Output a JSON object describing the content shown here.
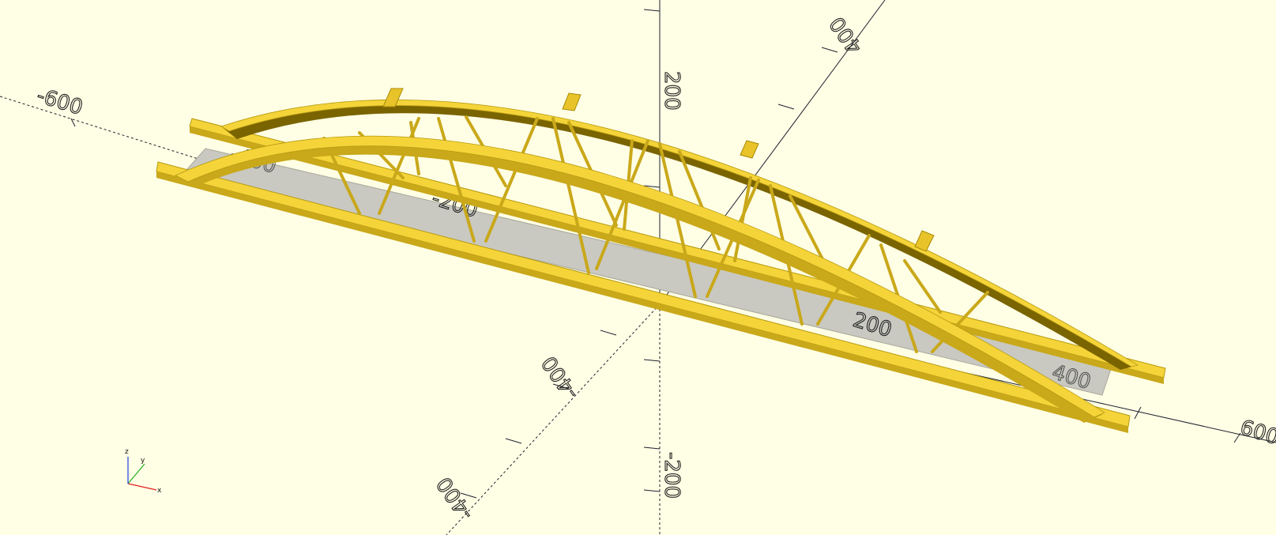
{
  "app": "OpenSCAD",
  "colors": {
    "background": "#ffffe5",
    "model": "#f5d43a",
    "model_dark": "#b59a10",
    "model_shadow": "#7a6400",
    "deck": "#c8c8c0",
    "axis": "#1e2130",
    "gizmo_x": "#e02020",
    "gizmo_y": "#20b020",
    "gizmo_z": "#2040e0"
  },
  "axes": {
    "x_positive": "600",
    "x_negative": "-600",
    "y_positive": "400",
    "y_negative": "-400",
    "z_positive": "200",
    "z_negative": "-200",
    "deck_left": "-200",
    "deck_right": "200",
    "deck_far_left": "-400",
    "deck_far_right": "400"
  },
  "gizmo": {
    "x_label": "x",
    "y_label": "y",
    "z_label": "z"
  },
  "model": {
    "name": "arch-bridge"
  }
}
